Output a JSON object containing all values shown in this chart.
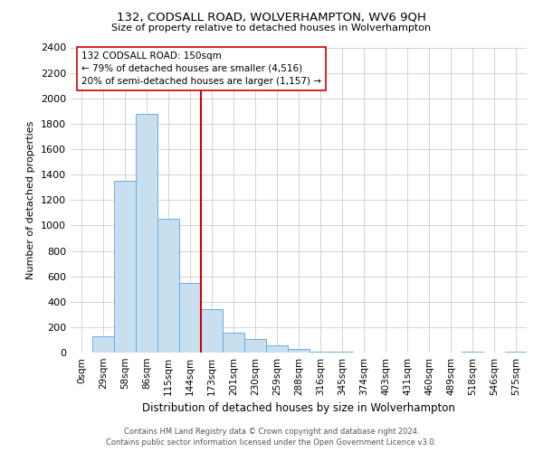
{
  "title": "132, CODSALL ROAD, WOLVERHAMPTON, WV6 9QH",
  "subtitle": "Size of property relative to detached houses in Wolverhampton",
  "xlabel": "Distribution of detached houses by size in Wolverhampton",
  "ylabel": "Number of detached properties",
  "bar_labels": [
    "0sqm",
    "29sqm",
    "58sqm",
    "86sqm",
    "115sqm",
    "144sqm",
    "173sqm",
    "201sqm",
    "230sqm",
    "259sqm",
    "288sqm",
    "316sqm",
    "345sqm",
    "374sqm",
    "403sqm",
    "431sqm",
    "460sqm",
    "489sqm",
    "518sqm",
    "546sqm",
    "575sqm"
  ],
  "bar_values": [
    0,
    125,
    1350,
    1880,
    1050,
    550,
    340,
    160,
    110,
    60,
    30,
    10,
    5,
    0,
    0,
    0,
    0,
    0,
    5,
    0,
    5
  ],
  "bar_color": "#c8dff0",
  "bar_edge_color": "#6aade4",
  "vline_x_index": 5,
  "vline_color": "#cc0000",
  "annotation_title": "132 CODSALL ROAD: 150sqm",
  "annotation_line1": "← 79% of detached houses are smaller (4,516)",
  "annotation_line2": "20% of semi-detached houses are larger (1,157) →",
  "annotation_box_color": "#ffffff",
  "annotation_box_edge": "#cc0000",
  "ylim": [
    0,
    2400
  ],
  "yticks": [
    0,
    200,
    400,
    600,
    800,
    1000,
    1200,
    1400,
    1600,
    1800,
    2000,
    2200,
    2400
  ],
  "footer_line1": "Contains HM Land Registry data © Crown copyright and database right 2024.",
  "footer_line2": "Contains public sector information licensed under the Open Government Licence v3.0.",
  "background_color": "#ffffff",
  "grid_color": "#cccccc"
}
